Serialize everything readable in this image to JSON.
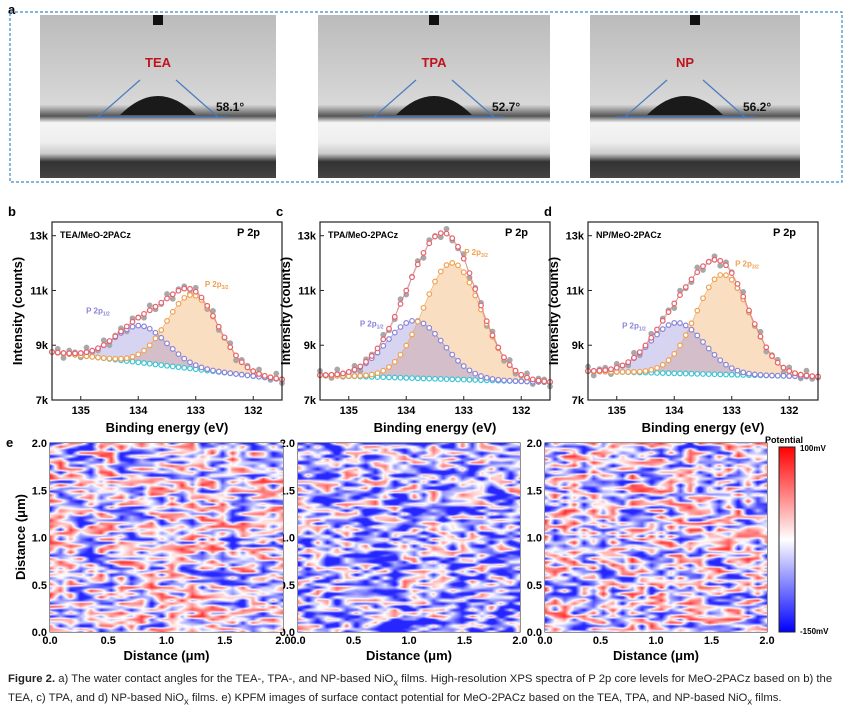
{
  "panel_a": {
    "label": "a",
    "images": [
      {
        "name": "TEA",
        "angle": "58.1°"
      },
      {
        "name": "TPA",
        "angle": "52.7°"
      },
      {
        "name": "NP",
        "angle": "56.2°"
      }
    ],
    "label_color": "#c0141c",
    "border_color": "#3a8ad0"
  },
  "chart_data": [
    {
      "type": "scatter",
      "panel": "b",
      "title": "TEA/MeO-2PACz",
      "annotation": "P 2p",
      "peak_labels": {
        "p32": "P 2p",
        "p32_sub": "3/2",
        "p12": "P 2p",
        "p12_sub": "1/2"
      },
      "xlabel": "Binding energy (eV)",
      "ylabel": "Intensity (counts)",
      "xlim": [
        135.5,
        131.5
      ],
      "ylim": [
        7000,
        13500
      ],
      "xticks": [
        "135",
        "134",
        "133",
        "132"
      ],
      "yticks": [
        "7k",
        "9k",
        "11k",
        "13k"
      ],
      "background": [
        8750,
        7750
      ],
      "components": [
        {
          "name": "P 2p3/2",
          "center": 133.05,
          "height": 2700,
          "sigma": 0.45
        },
        {
          "name": "P 2p1/2",
          "center": 133.95,
          "height": 1350,
          "sigma": 0.45
        }
      ],
      "fit_peak": 11450
    },
    {
      "type": "scatter",
      "panel": "c",
      "title": "TPA/MeO-2PACz",
      "annotation": "P 2p",
      "peak_labels": {
        "p32": "P 2p",
        "p32_sub": "3/2",
        "p12": "P 2p",
        "p12_sub": "1/2"
      },
      "xlabel": "Binding energy (eV)",
      "ylabel": "Intensity (counts)",
      "xlim": [
        135.5,
        131.5
      ],
      "ylim": [
        7000,
        13500
      ],
      "xticks": [
        "135",
        "134",
        "133",
        "132"
      ],
      "yticks": [
        "7k",
        "9k",
        "11k",
        "13k"
      ],
      "background": [
        7900,
        7650
      ],
      "components": [
        {
          "name": "P 2p3/2",
          "center": 133.2,
          "height": 4250,
          "sigma": 0.5
        },
        {
          "name": "P 2p1/2",
          "center": 133.85,
          "height": 2100,
          "sigma": 0.5
        }
      ],
      "fit_peak": 13000
    },
    {
      "type": "scatter",
      "panel": "d",
      "title": "NP/MeO-2PACz",
      "annotation": "P 2p",
      "peak_labels": {
        "p32": "P 2p",
        "p32_sub": "3/2",
        "p12": "P 2p",
        "p12_sub": "1/2"
      },
      "xlabel": "Binding energy (eV)",
      "ylabel": "Intensity (counts)",
      "xlim": [
        135.5,
        131.5
      ],
      "ylim": [
        7000,
        13500
      ],
      "xticks": [
        "135",
        "134",
        "133",
        "132"
      ],
      "yticks": [
        "7k",
        "9k",
        "11k",
        "13k"
      ],
      "background": [
        8050,
        7850
      ],
      "components": [
        {
          "name": "P 2p3/2",
          "center": 133.15,
          "height": 3650,
          "sigma": 0.47
        },
        {
          "name": "P 2p1/2",
          "center": 133.95,
          "height": 1850,
          "sigma": 0.47
        }
      ],
      "fit_peak": 12450
    },
    {
      "type": "heatmap",
      "panel": "e",
      "maps": [
        "TEA/MeO-2PACz",
        "TPA/MeO-2PACz",
        "NP/MeO-2PACz"
      ],
      "xlabel": "Distance (μm)",
      "ylabel": "Distance (μm)",
      "xlim": [
        0,
        2
      ],
      "ylim": [
        0,
        2
      ],
      "ticks": [
        "0.0",
        "0.5",
        "1.0",
        "1.5",
        "2.0"
      ],
      "colorbar": {
        "title": "Potential",
        "max": "100mV",
        "min": "-150mV",
        "colors": [
          "#0000ff",
          "#ffffff",
          "#ff0000"
        ]
      }
    }
  ],
  "panel_labels": [
    "b",
    "c",
    "d",
    "e"
  ],
  "colors": {
    "fit": "#e8606a",
    "p32": "#f0a050",
    "p12": "#8a84d8",
    "background": "#3cc4d4",
    "raw": "#a8a8a8"
  },
  "caption": {
    "fig": "Figure 2.",
    "t1": " a) The water contact angles for the TEA-, TPA-, and NP-based NiO",
    "x": "x",
    "t2": " films. High-resolution XPS spectra of P 2p core levels for MeO-2PACz based on b) the TEA, c) TPA, and d) NP-based NiO",
    "t3": " films. e) KPFM images of surface contact potential for MeO-2PACz based on the TEA, TPA, and NP-based NiO",
    "t4": " films."
  }
}
